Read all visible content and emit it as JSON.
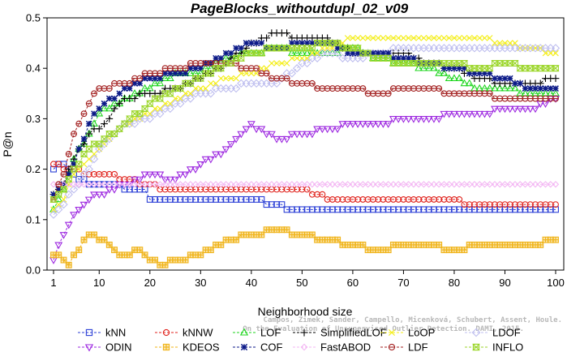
{
  "chart_data": {
    "type": "line",
    "title": "PageBlocks_withoutdupl_02_v09",
    "xlabel": "Neighborhood size",
    "ylabel": "P@n",
    "xlim": [
      0,
      100
    ],
    "ylim": [
      0,
      0.5
    ],
    "xticks": [
      1,
      10,
      20,
      30,
      40,
      50,
      60,
      70,
      80,
      90,
      100
    ],
    "yticks": [
      0.0,
      0.1,
      0.2,
      0.3,
      0.4,
      0.5
    ],
    "grid": false,
    "legend_position": "bottom",
    "watermark": [
      "Campos, Zimek, Sander, Campello, Micenková, Schubert, Assent, Houle.",
      "On the Evaluation of Unsupervised Outlier Detection. DAMI, 2015."
    ],
    "series": [
      {
        "name": "kNN",
        "color": "#2b3fd6",
        "marker": "square",
        "points": [
          [
            1,
            0.2
          ],
          [
            3,
            0.21
          ],
          [
            5,
            0.19
          ],
          [
            8,
            0.17
          ],
          [
            10,
            0.17
          ],
          [
            13,
            0.17
          ],
          [
            16,
            0.16
          ],
          [
            19,
            0.16
          ],
          [
            20,
            0.14
          ],
          [
            30,
            0.14
          ],
          [
            40,
            0.14
          ],
          [
            45,
            0.13
          ],
          [
            48,
            0.12
          ],
          [
            60,
            0.12
          ],
          [
            70,
            0.12
          ],
          [
            80,
            0.12
          ],
          [
            90,
            0.12
          ],
          [
            100,
            0.12
          ]
        ]
      },
      {
        "name": "kNNW",
        "color": "#e0221c",
        "marker": "circle",
        "points": [
          [
            1,
            0.21
          ],
          [
            4,
            0.2
          ],
          [
            8,
            0.19
          ],
          [
            12,
            0.19
          ],
          [
            15,
            0.18
          ],
          [
            20,
            0.17
          ],
          [
            22,
            0.16
          ],
          [
            30,
            0.16
          ],
          [
            40,
            0.16
          ],
          [
            50,
            0.16
          ],
          [
            52,
            0.15
          ],
          [
            56,
            0.14
          ],
          [
            60,
            0.14
          ],
          [
            70,
            0.14
          ],
          [
            80,
            0.14
          ],
          [
            82,
            0.13
          ],
          [
            90,
            0.13
          ],
          [
            100,
            0.13
          ]
        ]
      },
      {
        "name": "LOF",
        "color": "#1fd61f",
        "marker": "triangle-up",
        "points": [
          [
            1,
            0.12
          ],
          [
            3,
            0.16
          ],
          [
            5,
            0.22
          ],
          [
            8,
            0.27
          ],
          [
            10,
            0.31
          ],
          [
            15,
            0.34
          ],
          [
            20,
            0.36
          ],
          [
            25,
            0.39
          ],
          [
            30,
            0.39
          ],
          [
            35,
            0.42
          ],
          [
            40,
            0.43
          ],
          [
            45,
            0.44
          ],
          [
            50,
            0.43
          ],
          [
            55,
            0.43
          ],
          [
            60,
            0.44
          ],
          [
            65,
            0.42
          ],
          [
            70,
            0.41
          ],
          [
            75,
            0.4
          ],
          [
            80,
            0.38
          ],
          [
            85,
            0.36
          ],
          [
            90,
            0.36
          ],
          [
            95,
            0.35
          ],
          [
            100,
            0.35
          ]
        ]
      },
      {
        "name": "SimplifiedLOF",
        "color": "#000000",
        "marker": "plus",
        "points": [
          [
            1,
            0.15
          ],
          [
            3,
            0.17
          ],
          [
            5,
            0.22
          ],
          [
            8,
            0.27
          ],
          [
            10,
            0.28
          ],
          [
            15,
            0.34
          ],
          [
            20,
            0.35
          ],
          [
            25,
            0.36
          ],
          [
            30,
            0.38
          ],
          [
            35,
            0.41
          ],
          [
            40,
            0.45
          ],
          [
            45,
            0.47
          ],
          [
            50,
            0.46
          ],
          [
            55,
            0.46
          ],
          [
            60,
            0.43
          ],
          [
            65,
            0.43
          ],
          [
            70,
            0.43
          ],
          [
            75,
            0.41
          ],
          [
            80,
            0.4
          ],
          [
            85,
            0.38
          ],
          [
            90,
            0.37
          ],
          [
            95,
            0.37
          ],
          [
            100,
            0.38
          ]
        ]
      },
      {
        "name": "LoOP",
        "color": "#f4ee16",
        "marker": "x",
        "points": [
          [
            1,
            0.12
          ],
          [
            3,
            0.14
          ],
          [
            5,
            0.19
          ],
          [
            8,
            0.22
          ],
          [
            10,
            0.24
          ],
          [
            15,
            0.29
          ],
          [
            20,
            0.31
          ],
          [
            25,
            0.34
          ],
          [
            30,
            0.36
          ],
          [
            35,
            0.38
          ],
          [
            40,
            0.39
          ],
          [
            45,
            0.41
          ],
          [
            50,
            0.42
          ],
          [
            55,
            0.44
          ],
          [
            60,
            0.46
          ],
          [
            65,
            0.46
          ],
          [
            70,
            0.46
          ],
          [
            75,
            0.46
          ],
          [
            80,
            0.46
          ],
          [
            85,
            0.46
          ],
          [
            90,
            0.45
          ],
          [
            95,
            0.44
          ],
          [
            100,
            0.43
          ]
        ]
      },
      {
        "name": "LDOF",
        "color": "#bfbfef",
        "marker": "diamond",
        "points": [
          [
            1,
            0.11
          ],
          [
            3,
            0.13
          ],
          [
            5,
            0.16
          ],
          [
            8,
            0.2
          ],
          [
            10,
            0.24
          ],
          [
            15,
            0.29
          ],
          [
            20,
            0.3
          ],
          [
            25,
            0.33
          ],
          [
            30,
            0.35
          ],
          [
            35,
            0.36
          ],
          [
            40,
            0.37
          ],
          [
            45,
            0.37
          ],
          [
            50,
            0.41
          ],
          [
            55,
            0.43
          ],
          [
            60,
            0.42
          ],
          [
            65,
            0.43
          ],
          [
            70,
            0.44
          ],
          [
            75,
            0.44
          ],
          [
            80,
            0.44
          ],
          [
            85,
            0.44
          ],
          [
            90,
            0.44
          ],
          [
            95,
            0.44
          ],
          [
            100,
            0.44
          ]
        ]
      },
      {
        "name": "ODIN",
        "color": "#9d28e0",
        "marker": "triangle-down",
        "points": [
          [
            1,
            0.02
          ],
          [
            3,
            0.07
          ],
          [
            5,
            0.11
          ],
          [
            8,
            0.14
          ],
          [
            10,
            0.15
          ],
          [
            15,
            0.17
          ],
          [
            20,
            0.19
          ],
          [
            25,
            0.18
          ],
          [
            30,
            0.21
          ],
          [
            35,
            0.24
          ],
          [
            40,
            0.29
          ],
          [
            45,
            0.26
          ],
          [
            50,
            0.27
          ],
          [
            55,
            0.28
          ],
          [
            60,
            0.29
          ],
          [
            65,
            0.29
          ],
          [
            70,
            0.3
          ],
          [
            75,
            0.3
          ],
          [
            80,
            0.31
          ],
          [
            85,
            0.31
          ],
          [
            90,
            0.32
          ],
          [
            95,
            0.32
          ],
          [
            100,
            0.34
          ]
        ]
      },
      {
        "name": "KDEOS",
        "color": "#f0b41a",
        "marker": "square-filled",
        "points": [
          [
            1,
            0.03
          ],
          [
            3,
            0.02
          ],
          [
            4,
            0.01
          ],
          [
            6,
            0.04
          ],
          [
            8,
            0.07
          ],
          [
            10,
            0.06
          ],
          [
            12,
            0.05
          ],
          [
            14,
            0.03
          ],
          [
            16,
            0.03
          ],
          [
            18,
            0.04
          ],
          [
            20,
            0.02
          ],
          [
            22,
            0.01
          ],
          [
            25,
            0.02
          ],
          [
            30,
            0.03
          ],
          [
            33,
            0.05
          ],
          [
            36,
            0.06
          ],
          [
            40,
            0.07
          ],
          [
            45,
            0.08
          ],
          [
            50,
            0.07
          ],
          [
            55,
            0.06
          ],
          [
            60,
            0.05
          ],
          [
            65,
            0.04
          ],
          [
            70,
            0.05
          ],
          [
            75,
            0.05
          ],
          [
            80,
            0.04
          ],
          [
            85,
            0.05
          ],
          [
            90,
            0.05
          ],
          [
            95,
            0.05
          ],
          [
            100,
            0.06
          ]
        ]
      },
      {
        "name": "COF",
        "color": "#0c1a88",
        "marker": "asterisk",
        "points": [
          [
            1,
            0.15
          ],
          [
            3,
            0.17
          ],
          [
            5,
            0.21
          ],
          [
            8,
            0.29
          ],
          [
            10,
            0.32
          ],
          [
            15,
            0.36
          ],
          [
            20,
            0.38
          ],
          [
            25,
            0.39
          ],
          [
            30,
            0.4
          ],
          [
            35,
            0.43
          ],
          [
            40,
            0.45
          ],
          [
            45,
            0.44
          ],
          [
            50,
            0.45
          ],
          [
            55,
            0.45
          ],
          [
            60,
            0.43
          ],
          [
            65,
            0.43
          ],
          [
            70,
            0.42
          ],
          [
            75,
            0.41
          ],
          [
            80,
            0.4
          ],
          [
            85,
            0.39
          ],
          [
            90,
            0.38
          ],
          [
            95,
            0.36
          ],
          [
            100,
            0.36
          ]
        ]
      },
      {
        "name": "FastABOD",
        "color": "#f3b6f3",
        "marker": "diamond-small",
        "points": [
          [
            1,
            0.17
          ],
          [
            10,
            0.17
          ],
          [
            20,
            0.17
          ],
          [
            30,
            0.17
          ],
          [
            40,
            0.17
          ],
          [
            50,
            0.17
          ],
          [
            60,
            0.17
          ],
          [
            70,
            0.17
          ],
          [
            80,
            0.17
          ],
          [
            90,
            0.17
          ],
          [
            100,
            0.17
          ]
        ]
      },
      {
        "name": "LDF",
        "color": "#a32020",
        "marker": "circle-dot",
        "points": [
          [
            1,
            0.14
          ],
          [
            3,
            0.19
          ],
          [
            5,
            0.27
          ],
          [
            8,
            0.33
          ],
          [
            10,
            0.36
          ],
          [
            15,
            0.37
          ],
          [
            20,
            0.39
          ],
          [
            25,
            0.4
          ],
          [
            30,
            0.41
          ],
          [
            35,
            0.41
          ],
          [
            40,
            0.4
          ],
          [
            45,
            0.38
          ],
          [
            50,
            0.37
          ],
          [
            55,
            0.36
          ],
          [
            60,
            0.36
          ],
          [
            65,
            0.35
          ],
          [
            70,
            0.36
          ],
          [
            75,
            0.36
          ],
          [
            80,
            0.35
          ],
          [
            85,
            0.35
          ],
          [
            90,
            0.34
          ],
          [
            95,
            0.34
          ],
          [
            100,
            0.34
          ]
        ]
      },
      {
        "name": "INFLO",
        "color": "#9cd62b",
        "marker": "hourglass",
        "points": [
          [
            1,
            0.14
          ],
          [
            3,
            0.16
          ],
          [
            5,
            0.2
          ],
          [
            8,
            0.24
          ],
          [
            10,
            0.25
          ],
          [
            15,
            0.29
          ],
          [
            20,
            0.33
          ],
          [
            25,
            0.36
          ],
          [
            30,
            0.38
          ],
          [
            35,
            0.41
          ],
          [
            40,
            0.43
          ],
          [
            45,
            0.44
          ],
          [
            50,
            0.44
          ],
          [
            55,
            0.45
          ],
          [
            60,
            0.44
          ],
          [
            65,
            0.42
          ],
          [
            70,
            0.41
          ],
          [
            75,
            0.41
          ],
          [
            80,
            0.41
          ],
          [
            85,
            0.4
          ],
          [
            90,
            0.41
          ],
          [
            95,
            0.4
          ],
          [
            100,
            0.4
          ]
        ]
      }
    ]
  }
}
